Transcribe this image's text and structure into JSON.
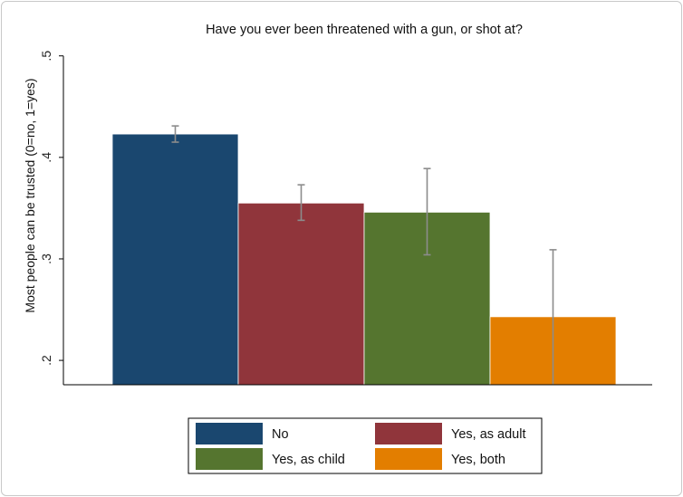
{
  "chart_data": {
    "type": "bar",
    "title": "Have you ever been threatened with a gun, or shot at?",
    "xlabel": "",
    "ylabel": "Most people can be trusted (0=no, 1=yes)",
    "ylim": [
      0.176,
      0.506
    ],
    "yticks": [
      0.2,
      0.3,
      0.4,
      0.5
    ],
    "ytick_labels": [
      ".2",
      ".3",
      ".4",
      ".5"
    ],
    "grid": false,
    "legend_position": "bottom",
    "categories": [
      "No",
      "Yes, as adult",
      "Yes, as child",
      "Yes, both"
    ],
    "values": [
      0.423,
      0.355,
      0.346,
      0.243
    ],
    "ci_low": [
      0.415,
      0.338,
      0.304,
      0.176
    ],
    "ci_high": [
      0.431,
      0.373,
      0.389,
      0.309
    ],
    "colors": [
      "#1a476f",
      "#90353b",
      "#55752f",
      "#e37e00"
    ],
    "error_bar_color": "#8c8c8c"
  }
}
